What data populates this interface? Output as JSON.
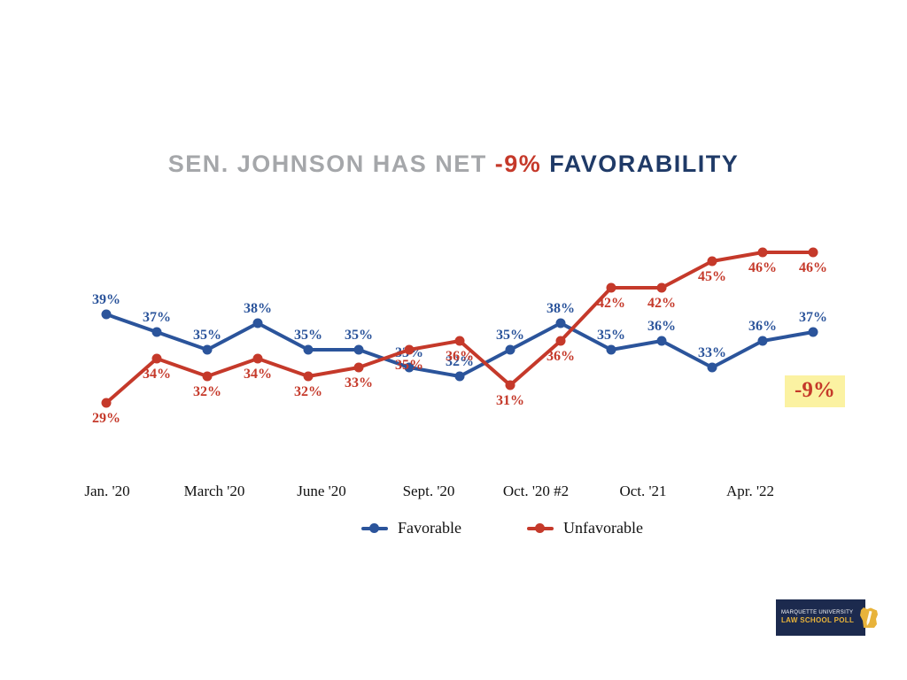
{
  "title": {
    "prefix": "SEN. JOHNSON HAS NET ",
    "highlight": "-9% ",
    "suffix": "FAVORABILITY"
  },
  "annotation": {
    "net_label": "-9%",
    "bg_color": "#fbf2a2",
    "text_color": "#c5392a"
  },
  "legend": [
    {
      "label": "Favorable",
      "color": "#2b549b"
    },
    {
      "label": "Unfavorable",
      "color": "#c5392a"
    }
  ],
  "colors": {
    "favorable": "#2b549b",
    "unfavorable": "#c5392a",
    "title_gray": "#a5a7aa",
    "title_navy": "#1f3a67",
    "axis_text": "#111111"
  },
  "chart_data": {
    "type": "line",
    "title": "Sen. Johnson has net -9% favorability",
    "x_tick_labels": [
      "Jan. '20",
      "March '20",
      "June '20",
      "Sept. '20",
      "Oct. '20 #2",
      "Oct. '21",
      "Apr. '22"
    ],
    "point_count": 15,
    "series": [
      {
        "name": "Favorable",
        "color": "#2b549b",
        "values": [
          39,
          37,
          35,
          38,
          35,
          35,
          33,
          32,
          35,
          38,
          35,
          36,
          33,
          36,
          37
        ],
        "label_suffix": "%"
      },
      {
        "name": "Unfavorable",
        "color": "#c5392a",
        "values": [
          29,
          34,
          32,
          34,
          32,
          33,
          35,
          36,
          31,
          36,
          42,
          42,
          45,
          46,
          46
        ],
        "label_suffix": "%"
      }
    ],
    "ylim": [
      26,
      50
    ],
    "grid": false,
    "legend_position": "bottom",
    "annotation_value": "-9%"
  },
  "logo": {
    "line1": "MARQUETTE UNIVERSITY",
    "line2": "LAW SCHOOL POLL"
  }
}
